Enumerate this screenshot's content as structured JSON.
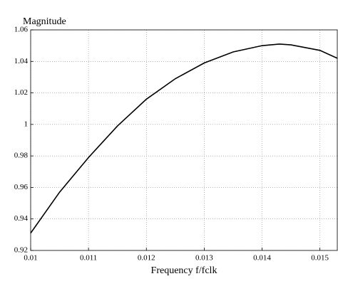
{
  "chart_data": {
    "type": "line",
    "ylabel": "Magnitude",
    "xlabel": "Frequency f/fclk",
    "x": [
      0.01,
      0.0105,
      0.011,
      0.0115,
      0.012,
      0.0125,
      0.013,
      0.0135,
      0.014,
      0.0143,
      0.0145,
      0.015,
      0.0153
    ],
    "series": [
      {
        "color": "#000000",
        "values": [
          0.931,
          0.957,
          0.979,
          0.999,
          1.016,
          1.029,
          1.039,
          1.046,
          1.05,
          1.051,
          1.0505,
          1.047,
          1.042
        ]
      }
    ],
    "xlim": [
      0.01,
      0.0153
    ],
    "xticks": [
      0.01,
      0.011,
      0.012,
      0.013,
      0.014,
      0.015
    ],
    "ylim": [
      0.92,
      1.06
    ],
    "yticks": [
      0.92,
      0.94,
      0.96,
      0.98,
      1,
      1.02,
      1.04,
      1.06
    ],
    "grid": true
  }
}
